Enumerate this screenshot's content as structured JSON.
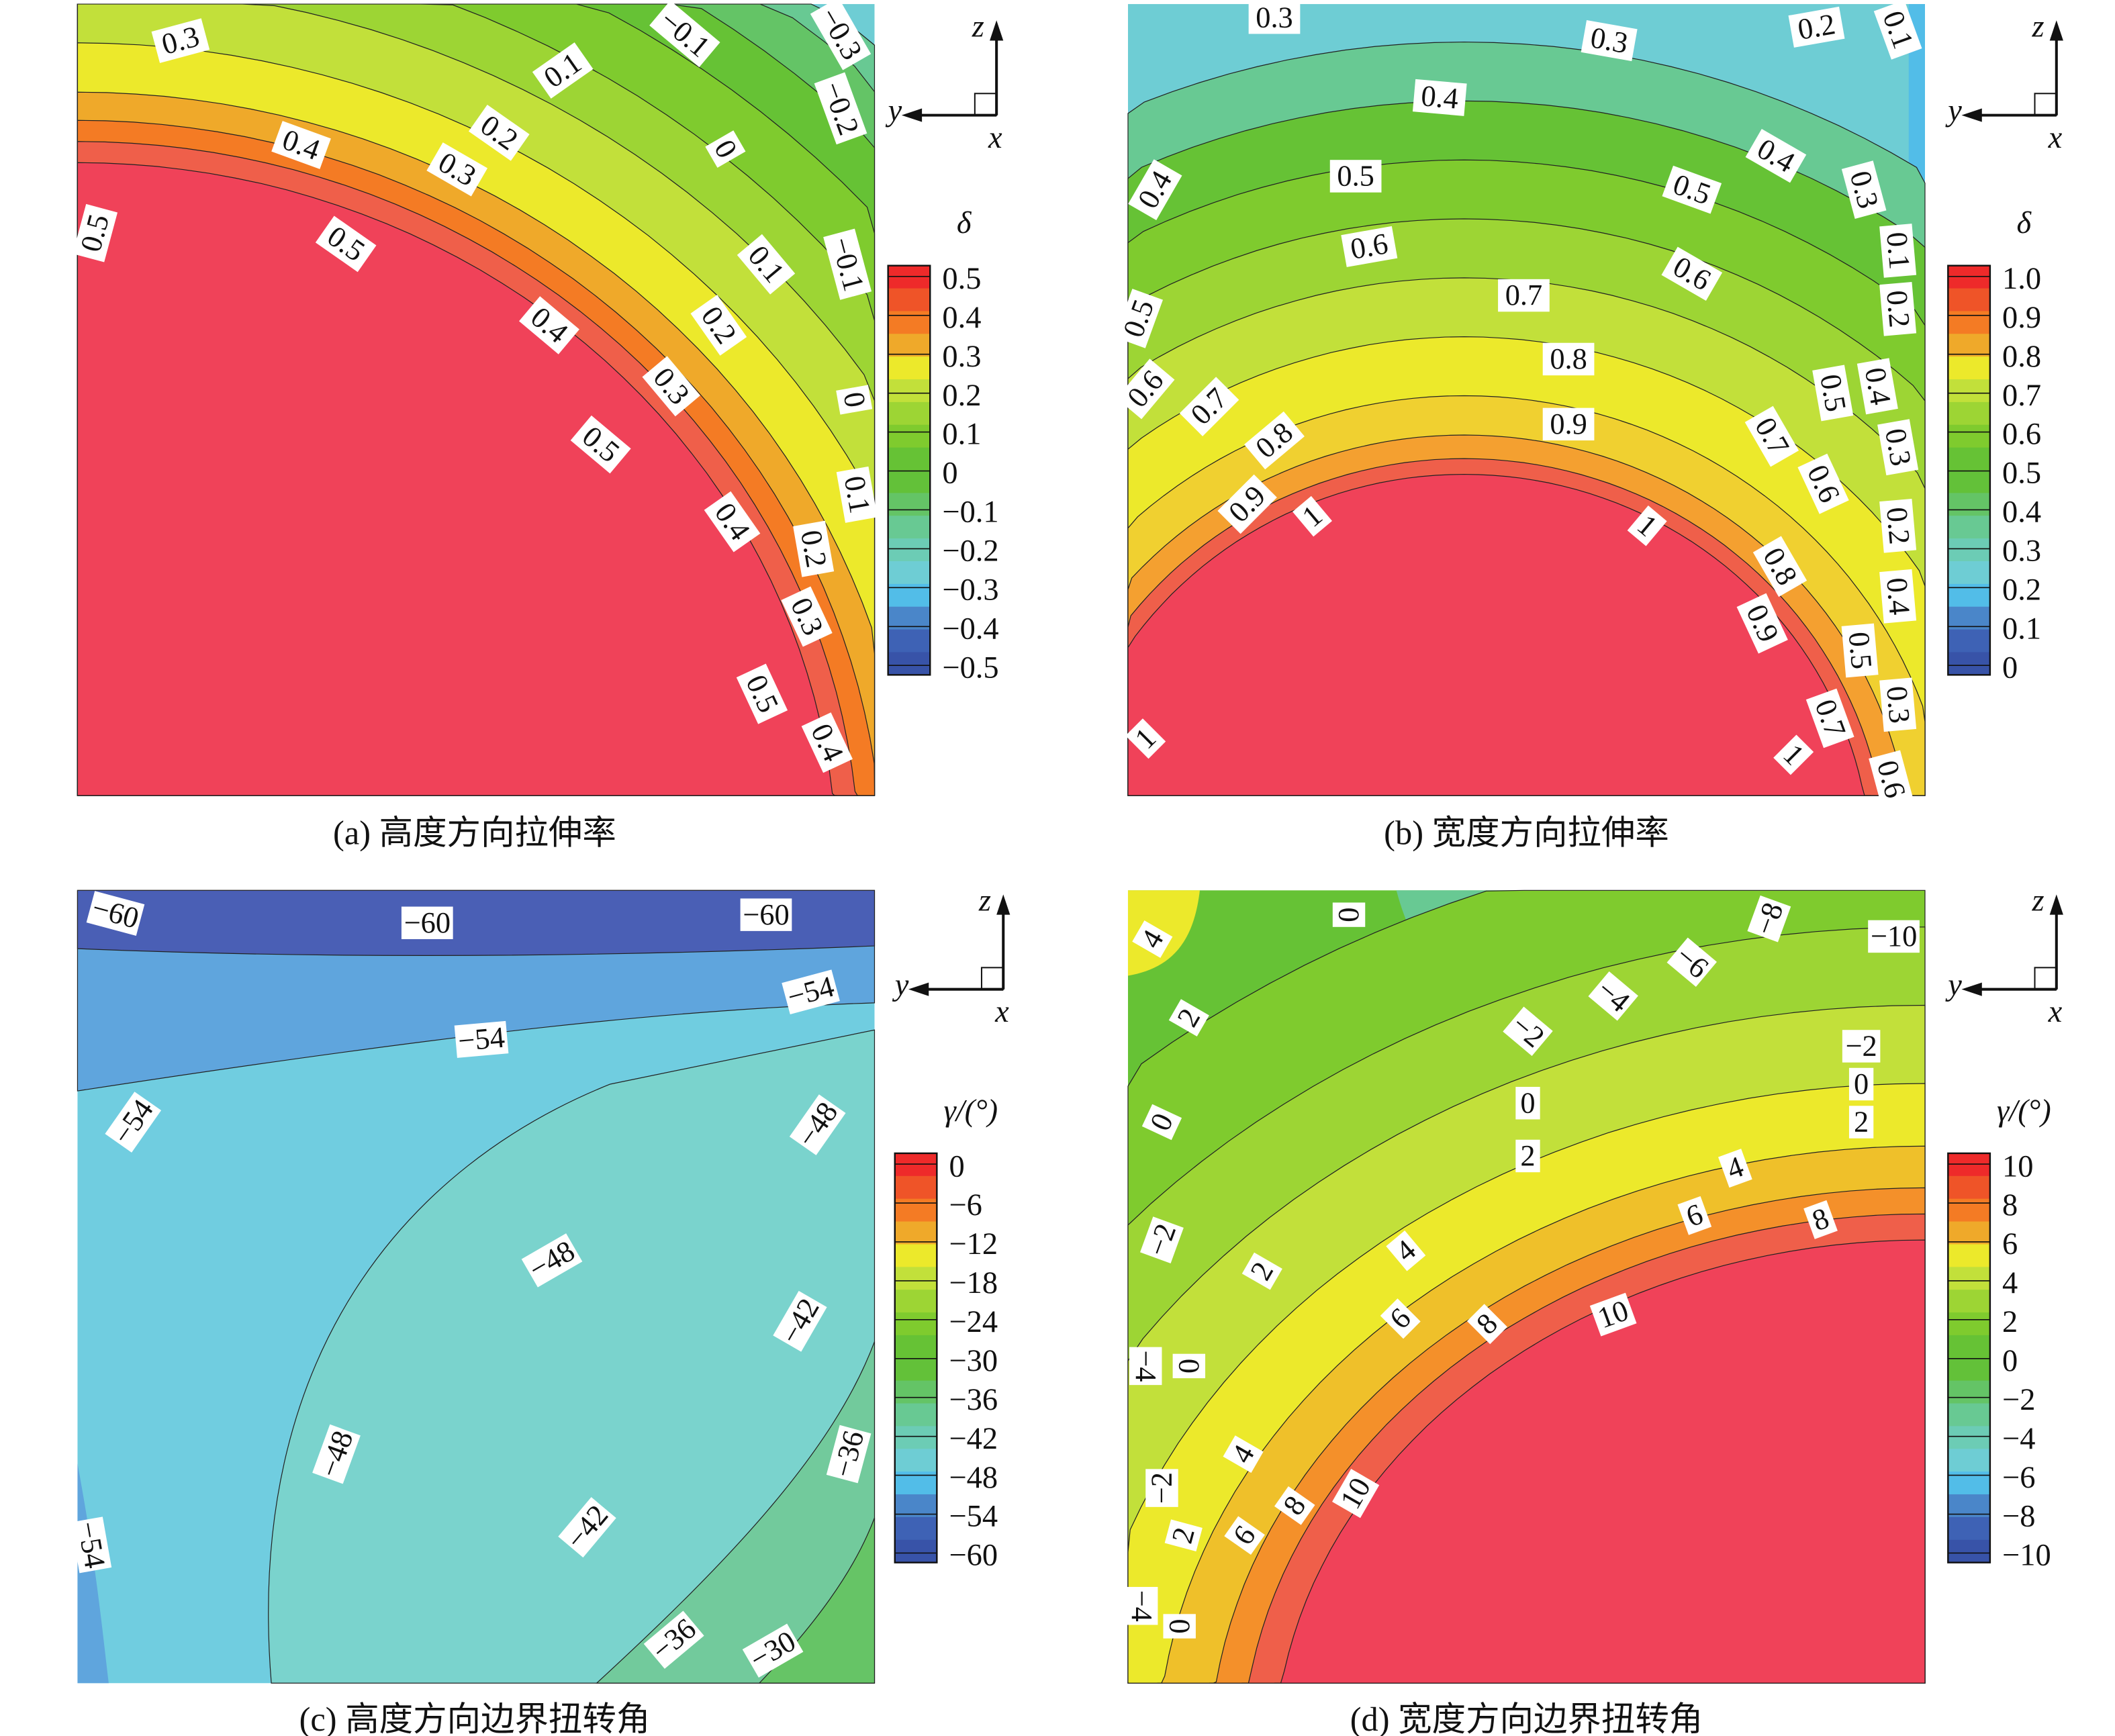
{
  "axes_triad": {
    "z": "z",
    "y": "y",
    "x": "x"
  },
  "chart_data": [
    {
      "type": "contour",
      "caption": "(a) 高度方向拉伸率",
      "colorbar_label": "δ",
      "colorbar_ticks": [
        "0.5",
        "0.4",
        "0.3",
        "0.2",
        "0.1",
        "0",
        "−0.1",
        "−0.2",
        "−0.3",
        "−0.4",
        "−0.5"
      ],
      "range": [
        -0.5,
        0.5
      ],
      "contour_labels": [
        "0.3",
        "−0.1",
        "−0.3",
        "0.1",
        "−0.2",
        "0.2",
        "0.4",
        "0.3",
        "0",
        "0.5",
        "0.5",
        "−0.1",
        "0.1",
        "0.4",
        "0.2",
        "0.3",
        "0",
        "0.5",
        "0.4",
        "0.1",
        "0.2",
        "0.3",
        "0.5",
        "0.4"
      ]
    },
    {
      "type": "contour",
      "caption": "(b) 宽度方向拉伸率",
      "colorbar_label": "δ",
      "colorbar_ticks": [
        "1.0",
        "0.9",
        "0.8",
        "0.7",
        "0.6",
        "0.5",
        "0.4",
        "0.3",
        "0.2",
        "0.1",
        "0"
      ],
      "range": [
        0,
        1.0
      ],
      "contour_labels": [
        "0.3",
        "0.2",
        "0.1",
        "0.3",
        "0.4",
        "0.4",
        "0.5",
        "0.4",
        "0.5",
        "0.3",
        "0.6",
        "0.6",
        "0.7",
        "0.1",
        "0.2",
        "0.5",
        "0.8",
        "0.6",
        "0.7",
        "0.9",
        "0.8",
        "0.4",
        "0.5",
        "0.3",
        "0.7",
        "0.6",
        "0.9",
        "1",
        "1",
        "0.2",
        "0.8",
        "0.9",
        "0.4",
        "0.5",
        "0.3",
        "0.7",
        "0.6",
        "1",
        "1"
      ]
    },
    {
      "type": "contour",
      "caption": "(c) 高度方向边界扭转角",
      "colorbar_label": "γ/(°)",
      "colorbar_ticks": [
        "0",
        "−6",
        "−12",
        "−18",
        "−24",
        "−30",
        "−36",
        "−42",
        "−48",
        "−54",
        "−60"
      ],
      "range": [
        -60,
        0
      ],
      "contour_labels": [
        "−60",
        "−60",
        "−60",
        "−54",
        "−54",
        "−54",
        "−48",
        "−48",
        "−42",
        "−36",
        "−48",
        "−42",
        "−36",
        "−30",
        "−54"
      ]
    },
    {
      "type": "contour",
      "caption": "(d) 宽度方向边界扭转角",
      "colorbar_label": "γ/(°)",
      "colorbar_ticks": [
        "10",
        "8",
        "6",
        "4",
        "2",
        "0",
        "−2",
        "−4",
        "−6",
        "−8",
        "−10"
      ],
      "range": [
        -10,
        10
      ],
      "contour_labels": [
        "4",
        "0",
        "−8",
        "−10",
        "−6",
        "2",
        "−4",
        "−2",
        "−2",
        "0",
        "0",
        "2",
        "0",
        "2",
        "4",
        "−2",
        "6",
        "8",
        "4",
        "2",
        "10",
        "6",
        "8",
        "−4",
        "0",
        "4",
        "−2",
        "10",
        "8",
        "6",
        "2",
        "−4",
        "0"
      ]
    }
  ],
  "colormap": [
    "#ee2a2a",
    "#ef5428",
    "#f47b24",
    "#efa92a",
    "#ece92b",
    "#c2e03a",
    "#9dd534",
    "#7fcb2e",
    "#66c235",
    "#63c139",
    "#64c466",
    "#68c993",
    "#6cccb5",
    "#6ecdd4",
    "#52bde8",
    "#4a86c9",
    "#3e62b5",
    "#3853a8"
  ]
}
